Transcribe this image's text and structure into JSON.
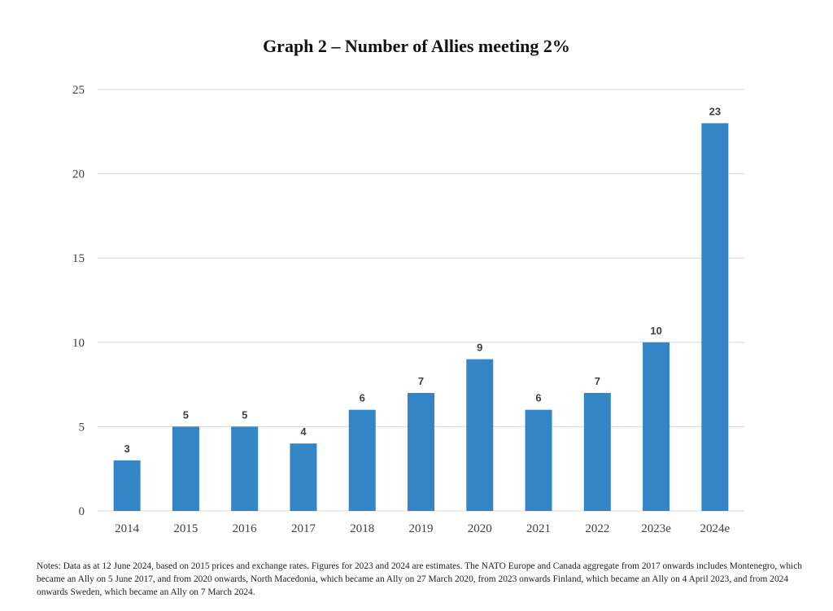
{
  "chart_data": {
    "type": "bar",
    "title": "Graph 2 – Number of Allies meeting 2%",
    "categories": [
      "2014",
      "2015",
      "2016",
      "2017",
      "2018",
      "2019",
      "2020",
      "2021",
      "2022",
      "2023e",
      "2024e"
    ],
    "values": [
      3,
      5,
      5,
      4,
      6,
      7,
      9,
      6,
      7,
      10,
      23
    ],
    "ylim": [
      0,
      25
    ],
    "yticks": [
      0,
      5,
      10,
      15,
      20,
      25
    ],
    "xlabel": "",
    "ylabel": "",
    "grid": true,
    "bar_color": "#3385c6",
    "grid_color": "#d9d9d9"
  },
  "notes": "Notes: Data as at 12 June 2024, based on 2015 prices and exchange rates. Figures for 2023 and 2024 are estimates. The NATO Europe and Canada aggregate from 2017 onwards includes Montenegro, which became an Ally on 5 June 2017, and from 2020 onwards, North Macedonia, which became an Ally on 27 March 2020, from 2023 onwards Finland, which became an Ally on 4 April 2023, and from 2024 onwards Sweden, which became an Ally on 7 March 2024."
}
